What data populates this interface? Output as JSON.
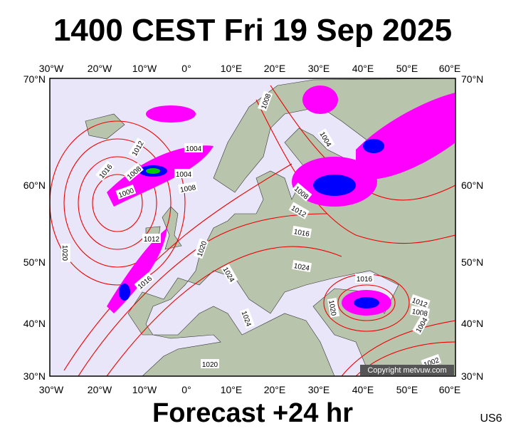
{
  "header": {
    "title": "1400 CEST Fri 19 Sep 2025"
  },
  "map": {
    "lon_labels": [
      "30°W",
      "20°W",
      "10°W",
      "0°",
      "10°E",
      "20°E",
      "30°E",
      "40°E",
      "50°E",
      "60°E"
    ],
    "lat_labels": [
      "70°N",
      "60°N",
      "50°N",
      "40°N",
      "30°N"
    ],
    "isobar_labels": [
      "1016",
      "1012",
      "1008",
      "1000",
      "1004",
      "1004",
      "1008",
      "1008",
      "1004",
      "1008",
      "1012",
      "1016",
      "1012",
      "1020",
      "1020",
      "1016",
      "1024",
      "1024",
      "1024",
      "1016",
      "1020",
      "1012",
      "1008",
      "1004",
      "1020",
      "1002"
    ],
    "copyright": "Copyright metvuw.com"
  },
  "footer": {
    "forecast": "Forecast +24 hr",
    "code": "US6"
  }
}
